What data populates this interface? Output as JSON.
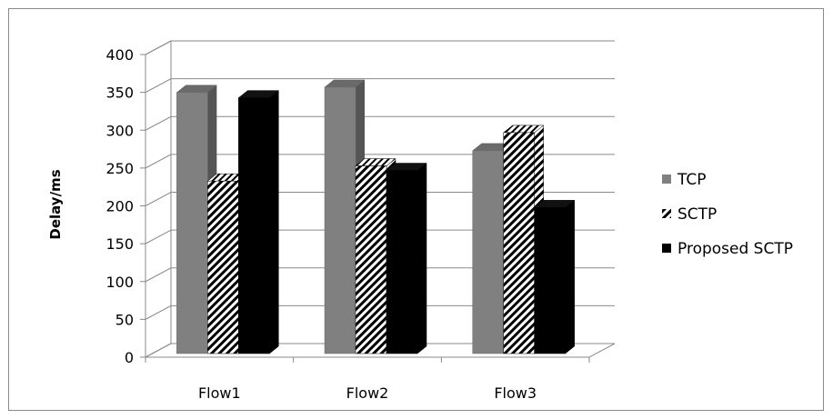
{
  "chart_data": {
    "type": "bar",
    "style": "3d-clustered-column",
    "title": "",
    "xlabel": "",
    "ylabel": "Delay/ms",
    "ylim": [
      0,
      400
    ],
    "yticks": [
      0,
      50,
      100,
      150,
      200,
      250,
      300,
      350,
      400
    ],
    "grid": true,
    "legend_position": "right",
    "categories": [
      "Flow1",
      "Flow2",
      "Flow3"
    ],
    "series": [
      {
        "name": "TCP",
        "values": [
          345,
          352,
          268
        ],
        "color": "#808080",
        "pattern": "solid-gray"
      },
      {
        "name": "SCTP",
        "values": [
          228,
          248,
          292
        ],
        "color": "#000000",
        "pattern": "diagonal-hatch"
      },
      {
        "name": "Proposed SCTP",
        "values": [
          338,
          242,
          193
        ],
        "color": "#000000",
        "pattern": "solid-black"
      }
    ]
  }
}
